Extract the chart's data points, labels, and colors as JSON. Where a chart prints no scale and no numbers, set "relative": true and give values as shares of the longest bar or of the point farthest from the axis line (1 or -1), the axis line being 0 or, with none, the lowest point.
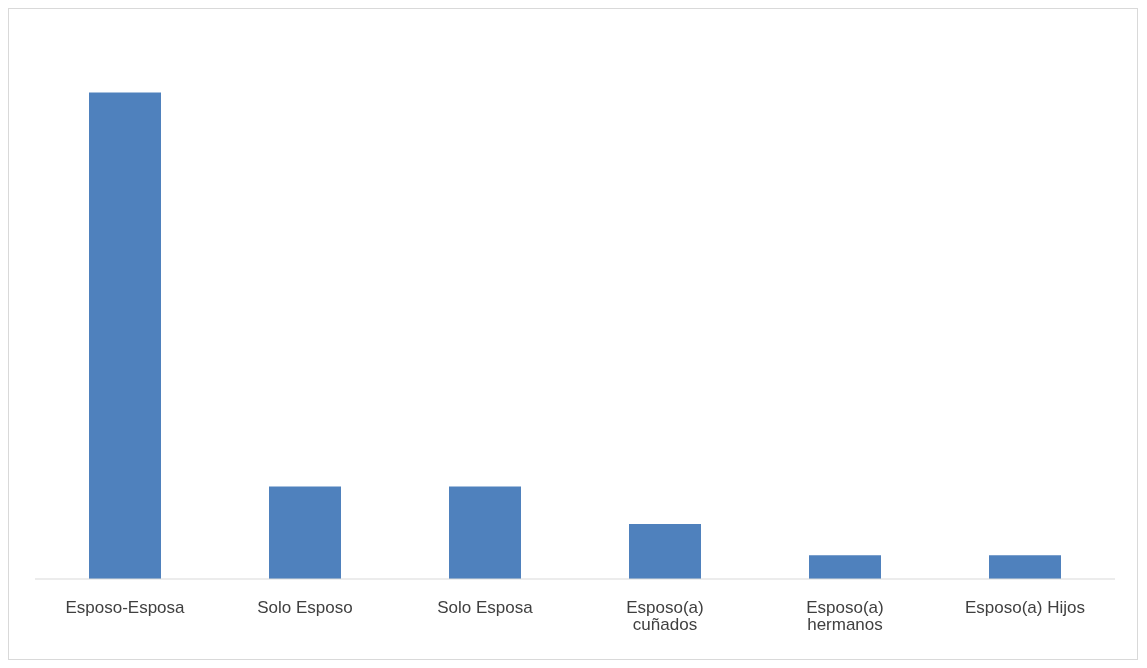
{
  "chart_data": {
    "type": "bar",
    "relative": true,
    "categories": [
      "Esposo-Esposa",
      "Solo Esposo",
      "Solo Esposa",
      "Esposo(a) cuñados",
      "Esposo(a) hermanos",
      "Esposo(a) Hijos"
    ],
    "values": [
      1,
      0.19,
      0.19,
      0.113,
      0.049,
      0.049
    ],
    "color": "#4f81bd"
  }
}
